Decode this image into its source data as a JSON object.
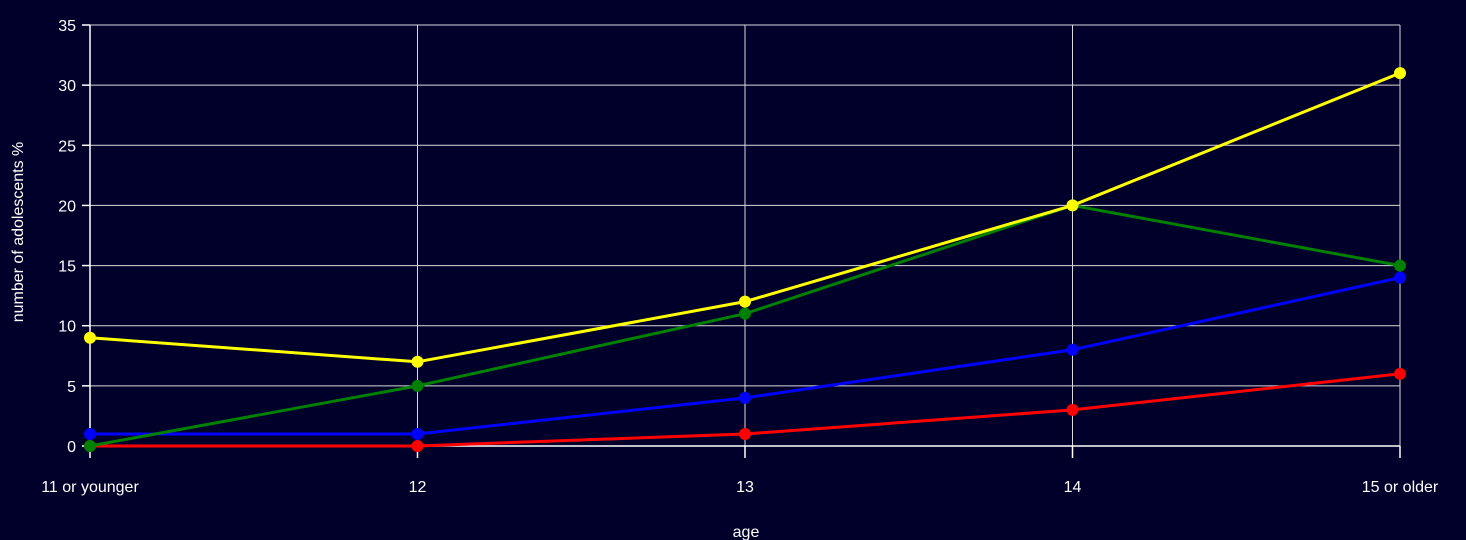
{
  "chart_data": {
    "type": "line",
    "xlabel": "age",
    "ylabel": "number of adolescents %",
    "categories": [
      "11 or younger",
      "12",
      "13",
      "14",
      "15 or older"
    ],
    "ylim": [
      0,
      35
    ],
    "yticks": [
      0,
      5,
      10,
      15,
      20,
      25,
      30,
      35
    ],
    "grid": true,
    "legend": "none",
    "series": [
      {
        "color": "#ffff00",
        "values": [
          9,
          7,
          12,
          20,
          31
        ]
      },
      {
        "color": "#008000",
        "values": [
          0,
          5,
          11,
          20,
          15
        ]
      },
      {
        "color": "#0000ff",
        "values": [
          1,
          1,
          4,
          8,
          14
        ]
      },
      {
        "color": "#ff0000",
        "values": [
          0,
          0,
          1,
          3,
          6
        ]
      }
    ]
  }
}
